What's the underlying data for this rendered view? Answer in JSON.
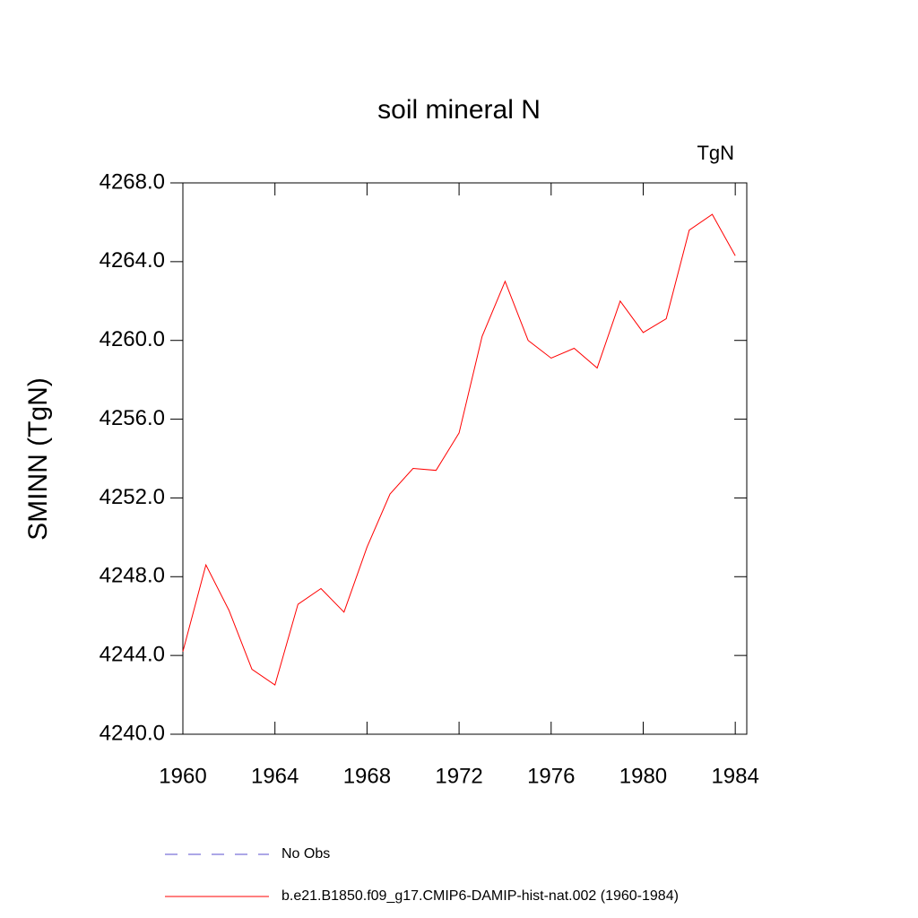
{
  "chart_data": {
    "type": "line",
    "title": "soil mineral N",
    "units": "TgN",
    "y_label": "SMINN  (TgN)",
    "x": [
      1960,
      1961,
      1962,
      1963,
      1964,
      1965,
      1966,
      1967,
      1968,
      1969,
      1970,
      1971,
      1972,
      1973,
      1974,
      1975,
      1976,
      1977,
      1978,
      1979,
      1980,
      1981,
      1982,
      1983,
      1984
    ],
    "series": [
      {
        "name": "No Obs",
        "color": "#5a4fcf",
        "style": "dashed",
        "values": [
          null,
          null,
          null,
          null,
          null,
          null,
          null,
          null,
          null,
          null,
          null,
          null,
          null,
          null,
          null,
          null,
          null,
          null,
          null,
          null,
          null,
          null,
          null,
          null,
          null
        ]
      },
      {
        "name": "b.e21.B1850.f09_g17.CMIP6-DAMIP-hist-nat.002 (1960-1984)",
        "color": "#ff0000",
        "style": "solid",
        "values": [
          4244.2,
          4248.6,
          4246.3,
          4243.3,
          4242.5,
          4246.6,
          4247.4,
          4246.2,
          4249.5,
          4252.2,
          4253.5,
          4253.4,
          4255.3,
          4260.2,
          4263.0,
          4260.0,
          4259.1,
          4259.6,
          4258.6,
          4262.0,
          4260.4,
          4261.1,
          4265.6,
          4266.4,
          4264.3
        ]
      }
    ],
    "xlim": [
      1960,
      1984.5
    ],
    "xticks": [
      1960,
      1964,
      1968,
      1972,
      1976,
      1980,
      1984
    ],
    "ylim": [
      4240,
      4268
    ],
    "yticks": [
      {
        "value": 4240,
        "label": "4240.0"
      },
      {
        "value": 4244,
        "label": "4244.0"
      },
      {
        "value": 4248,
        "label": "4248.0"
      },
      {
        "value": 4252,
        "label": "4252.0"
      },
      {
        "value": 4256,
        "label": "4256.0"
      },
      {
        "value": 4260,
        "label": "4260.0"
      },
      {
        "value": 4264,
        "label": "4264.0"
      },
      {
        "value": 4268,
        "label": "4268.0"
      }
    ],
    "grid": false
  }
}
